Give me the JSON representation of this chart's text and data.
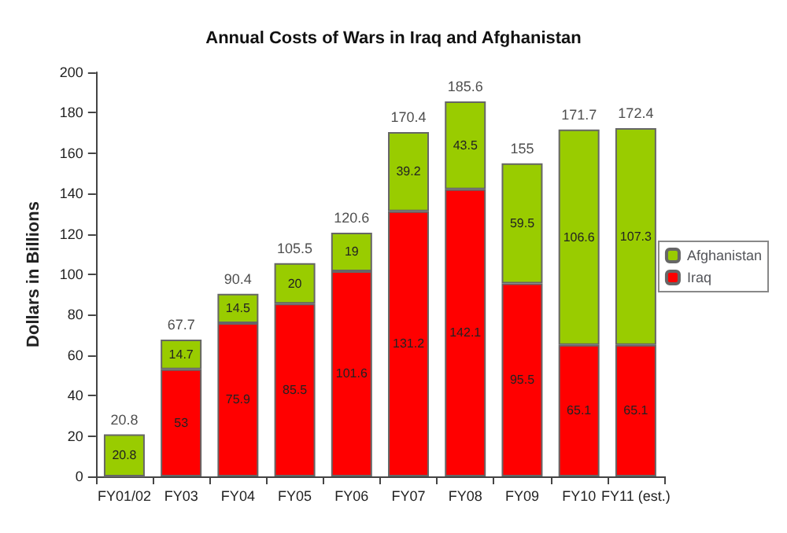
{
  "chart_data": {
    "type": "bar",
    "title": "Annual Costs of Wars in Iraq and Afghanistan",
    "ylabel": "Dollars in Billions",
    "categories": [
      "FY01/02",
      "FY03",
      "FY04",
      "FY05",
      "FY06",
      "FY07",
      "FY08",
      "FY09",
      "FY10",
      "FY11 (est.)"
    ],
    "stacked": true,
    "series": [
      {
        "name": "Iraq",
        "color": "#ff0000",
        "values": [
          0,
          53,
          75.9,
          85.5,
          101.6,
          131.2,
          142.1,
          95.5,
          65.1,
          65.1
        ],
        "value_labels": [
          null,
          "53",
          "75.9",
          "85.5",
          "101.6",
          "131.2",
          "142.1",
          "95.5",
          "65.1",
          "65.1"
        ]
      },
      {
        "name": "Afghanistan",
        "color": "#99cc00",
        "values": [
          20.8,
          14.7,
          14.5,
          20,
          19,
          39.2,
          43.5,
          59.5,
          106.6,
          107.3
        ],
        "value_labels": [
          "20.8",
          "14.7",
          "14.5",
          "20",
          "19",
          "39.2",
          "43.5",
          "59.5",
          "106.6",
          "107.3"
        ]
      }
    ],
    "totals": [
      "20.8",
      "67.7",
      "90.4",
      "105.5",
      "120.6",
      "170.4",
      "185.6",
      "155",
      "171.7",
      "172.4"
    ],
    "ylim": [
      0,
      200
    ],
    "yticks": [
      0,
      20,
      40,
      60,
      80,
      100,
      120,
      140,
      160,
      180,
      200
    ],
    "grid": false,
    "legend": "right"
  }
}
